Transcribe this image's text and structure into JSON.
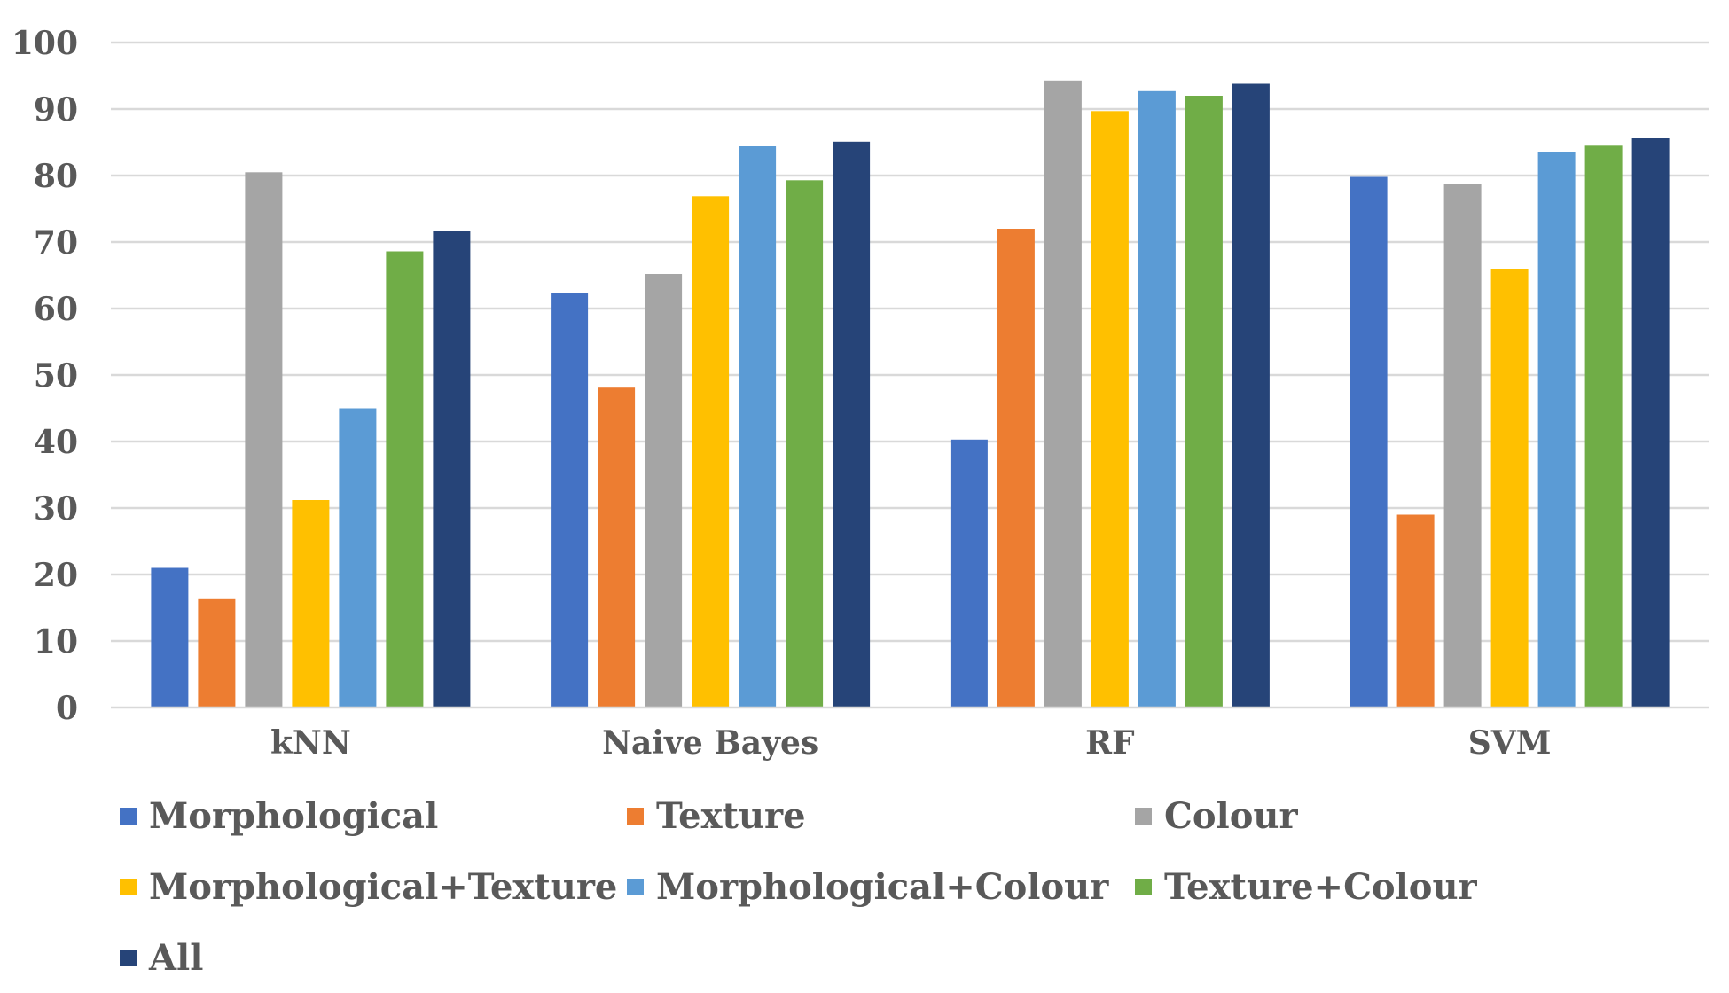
{
  "chart_data": {
    "type": "bar",
    "title": "",
    "xlabel": "",
    "ylabel": "",
    "categories": [
      "kNN",
      "Naive Bayes",
      "RF",
      "SVM"
    ],
    "ylim": [
      0,
      100
    ],
    "yticks": [
      "0",
      "10",
      "20",
      "30",
      "40",
      "50",
      "60",
      "70",
      "80",
      "90",
      "100"
    ],
    "grid": true,
    "legend_position": "bottom",
    "series": [
      {
        "name": "Morphological",
        "color": "#4472C4",
        "values": [
          21,
          62.3,
          40.3,
          79.8
        ]
      },
      {
        "name": "Texture",
        "color": "#ED7D31",
        "values": [
          16.3,
          48.1,
          72,
          29
        ]
      },
      {
        "name": "Colour",
        "color": "#A5A5A5",
        "values": [
          80.5,
          65.2,
          94.3,
          78.8
        ]
      },
      {
        "name": "Morphological+Texture",
        "color": "#FFC000",
        "values": [
          31.2,
          76.9,
          89.7,
          66
        ]
      },
      {
        "name": "Morphological+Colour",
        "color": "#5B9BD5",
        "values": [
          45,
          84.4,
          92.7,
          83.6
        ]
      },
      {
        "name": "Texture+Colour",
        "color": "#70AD47",
        "values": [
          68.6,
          79.3,
          92,
          84.5
        ]
      },
      {
        "name": "All",
        "color": "#264478",
        "values": [
          71.7,
          85.1,
          93.8,
          85.6
        ]
      }
    ]
  }
}
